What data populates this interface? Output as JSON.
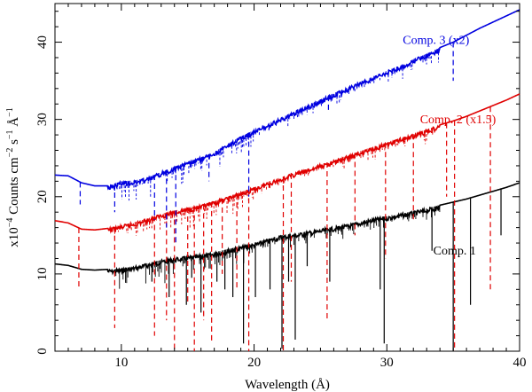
{
  "chart_data": {
    "type": "line",
    "title": "",
    "xlabel": "Wavelength (Å)",
    "ylabel_prefix": "x10",
    "ylabel_exp": "−4",
    "ylabel_rest": " Counts cm",
    "ylabel_exp2": "−2",
    "ylabel_rest2": " s",
    "ylabel_exp3": "−1",
    "ylabel_rest3": " Å",
    "ylabel_exp4": "−1",
    "xlim": [
      5,
      40
    ],
    "ylim": [
      0,
      45
    ],
    "x_ticks": [
      10,
      20,
      30,
      40
    ],
    "y_ticks": [
      0,
      10,
      20,
      30,
      40
    ],
    "grid": false,
    "series": [
      {
        "name": "Comp. 1",
        "color": "#000000",
        "style": "solid",
        "x": [
          5,
          6,
          7,
          8,
          9,
          10,
          11,
          12,
          13,
          14,
          15,
          16,
          17,
          18,
          19,
          20,
          21,
          22,
          23,
          24,
          25,
          26,
          27,
          28,
          29,
          30,
          31,
          32,
          33,
          34,
          35,
          36,
          37,
          38,
          39,
          40
        ],
        "values": [
          11.3,
          11.1,
          10.6,
          10.5,
          10.6,
          10.7,
          11.0,
          11.4,
          11.8,
          12.1,
          12.3,
          12.5,
          12.8,
          13.2,
          13.6,
          14.0,
          14.5,
          15.0,
          15.2,
          15.5,
          15.8,
          16.1,
          16.4,
          16.8,
          17.2,
          17.5,
          17.8,
          18.1,
          18.5,
          18.9,
          19.3,
          19.7,
          20.2,
          20.7,
          21.2,
          21.8
        ],
        "absorption_lines": [
          [
            12.3,
            9
          ],
          [
            13.6,
            7
          ],
          [
            14.9,
            6
          ],
          [
            15.3,
            9.5
          ],
          [
            16.0,
            5
          ],
          [
            17.2,
            9
          ],
          [
            17.8,
            8
          ],
          [
            18.4,
            7
          ],
          [
            19.2,
            1
          ],
          [
            20.1,
            7
          ],
          [
            21.2,
            8
          ],
          [
            22.1,
            0.3
          ],
          [
            22.6,
            9
          ],
          [
            23.1,
            1.5
          ],
          [
            24.0,
            11
          ],
          [
            25.7,
            9
          ],
          [
            29.5,
            8
          ],
          [
            29.8,
            1
          ],
          [
            33.4,
            13
          ],
          [
            35.0,
            0
          ],
          [
            36.3,
            6
          ],
          [
            38.6,
            15
          ]
        ],
        "label_x": 33.5,
        "label_y": 12.5,
        "label": "Comp. 1"
      },
      {
        "name": "Comp. 2 (x1.5)",
        "color": "#e00000",
        "style": "dashed",
        "x": [
          5,
          6,
          7,
          8,
          9,
          10,
          11,
          12,
          13,
          14,
          15,
          16,
          17,
          18,
          19,
          20,
          21,
          22,
          23,
          24,
          25,
          26,
          27,
          28,
          29,
          30,
          31,
          32,
          33,
          34,
          35,
          36,
          37,
          38,
          39,
          40
        ],
        "values": [
          16.9,
          16.6,
          15.8,
          15.7,
          15.9,
          16.3,
          16.7,
          17.2,
          17.8,
          18.2,
          18.6,
          18.9,
          19.4,
          20.0,
          20.6,
          21.2,
          21.9,
          22.5,
          23.1,
          23.6,
          24.2,
          24.7,
          25.3,
          25.9,
          26.5,
          27.0,
          27.6,
          28.1,
          28.7,
          29.3,
          29.8,
          30.4,
          31.1,
          31.8,
          32.5,
          33.3
        ],
        "absorption_lines": [
          [
            6.8,
            8
          ],
          [
            9.5,
            3
          ],
          [
            12.5,
            2
          ],
          [
            13.4,
            4
          ],
          [
            14.0,
            0
          ],
          [
            15.0,
            6
          ],
          [
            15.5,
            0
          ],
          [
            16.2,
            4
          ],
          [
            16.8,
            1
          ],
          [
            17.6,
            10
          ],
          [
            18.7,
            8
          ],
          [
            19.6,
            0
          ],
          [
            22.2,
            0
          ],
          [
            22.8,
            9
          ],
          [
            25.5,
            4
          ],
          [
            27.6,
            15
          ],
          [
            29.9,
            12
          ],
          [
            32.0,
            17
          ],
          [
            34.5,
            20
          ],
          [
            35.1,
            0
          ],
          [
            37.8,
            8
          ]
        ],
        "label_x": 32.5,
        "label_y": 29.5,
        "label": "Comp. 2 (x1.5)"
      },
      {
        "name": "Comp. 3 (x2)",
        "color": "#0000e0",
        "style": "dashed",
        "x": [
          5,
          6,
          7,
          8,
          9,
          10,
          11,
          12,
          13,
          14,
          15,
          16,
          17,
          18,
          19,
          20,
          21,
          22,
          23,
          24,
          25,
          26,
          27,
          28,
          29,
          30,
          31,
          32,
          33,
          34,
          35,
          36,
          37,
          38,
          39,
          40
        ],
        "values": [
          22.8,
          22.7,
          21.8,
          21.4,
          21.4,
          22.0,
          22.1,
          22.5,
          23.2,
          23.9,
          24.5,
          25.1,
          25.8,
          26.8,
          27.8,
          28.6,
          29.4,
          30.2,
          31.0,
          31.8,
          32.6,
          33.4,
          34.1,
          34.9,
          35.6,
          36.3,
          37.0,
          37.8,
          38.5,
          39.3,
          40.0,
          40.9,
          41.8,
          42.6,
          43.4,
          44.2
        ],
        "absorption_lines": [
          [
            6.9,
            19
          ],
          [
            9.5,
            18
          ],
          [
            12.5,
            17
          ],
          [
            13.4,
            16
          ],
          [
            14.1,
            14
          ],
          [
            16.6,
            22
          ],
          [
            19.6,
            20
          ],
          [
            25.6,
            31
          ],
          [
            35.0,
            35
          ]
        ],
        "label_x": 31.2,
        "label_y": 39.8,
        "label": "Comp. 3 (x2)"
      }
    ]
  }
}
